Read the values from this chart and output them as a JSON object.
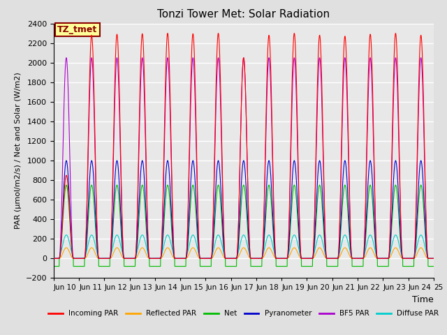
{
  "title": "Tonzi Tower Met: Solar Radiation",
  "ylabel": "PAR (μmol/m2/s) / Net and Solar (W/m2)",
  "xlabel": "Time",
  "ylim": [
    -200,
    2400
  ],
  "annotation_text": "TZ_tmet",
  "bg_color": "#e0e0e0",
  "plot_bg_color": "#e8e8e8",
  "grid_color": "#ffffff",
  "xtick_labels": [
    "Jun 10",
    "Jun 11",
    "Jun 12",
    "Jun 13",
    "Jun 14",
    "Jun 15",
    "Jun 16",
    "Jun 17",
    "Jun 18",
    "Jun 19",
    "Jun 20",
    "Jun 21",
    "Jun 22",
    "Jun 23",
    "Jun 24",
    "25"
  ],
  "series": {
    "incoming_par": {
      "color": "#ff0000",
      "label": "Incoming PAR"
    },
    "reflected_par": {
      "color": "#ffa500",
      "label": "Reflected PAR"
    },
    "net": {
      "color": "#00bb00",
      "label": "Net"
    },
    "pyranometer": {
      "color": "#0000cc",
      "label": "Pyranometer"
    },
    "bf5_par": {
      "color": "#aa00cc",
      "label": "BF5 PAR"
    },
    "diffuse_par": {
      "color": "#00cccc",
      "label": "Diffuse PAR"
    }
  }
}
